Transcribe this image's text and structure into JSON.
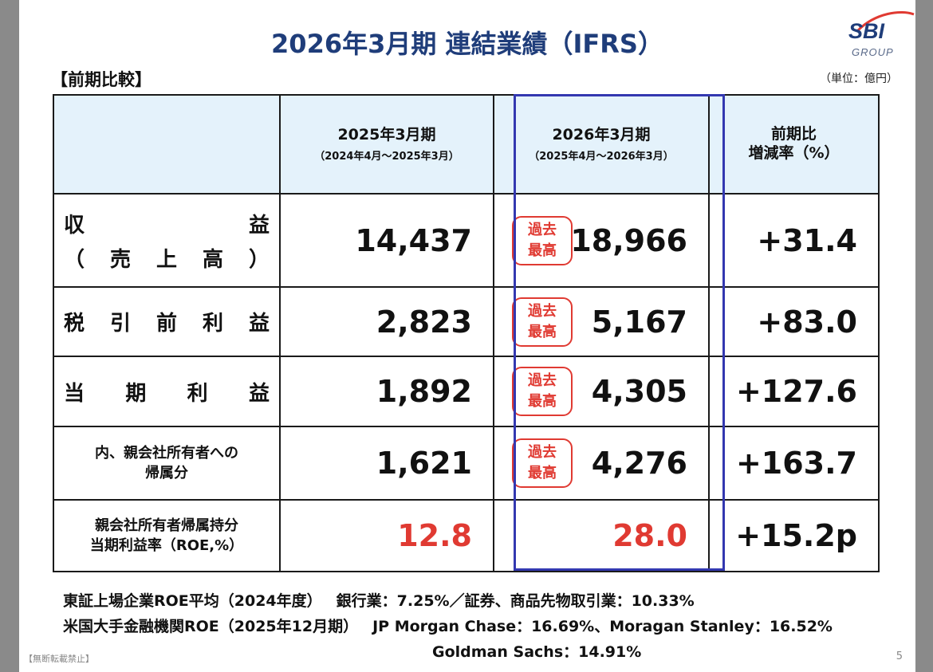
{
  "slide": {
    "title": "2026年3月期 連結業績（IFRS）",
    "logo_text": "SBI",
    "logo_subtext": "GROUP",
    "section_label": "【前期比較】",
    "unit": "（単位：億円）",
    "footer": "【無断転載禁止】",
    "page_number": "5"
  },
  "table": {
    "headers": [
      {
        "title": "2025年3月期",
        "sub": "（2024年4月～2025年3月）"
      },
      {
        "title": "2026年3月期",
        "sub": "（2025年4月～2026年3月）"
      },
      {
        "title_line1": "前期比",
        "title_line2": "増減率（%）"
      }
    ],
    "badge_line1": "過去",
    "badge_line2": "最高",
    "rows": [
      {
        "label_line1": [
          "収",
          "益"
        ],
        "label_line2": [
          "（",
          "売",
          "上",
          "高",
          "）"
        ],
        "prev": "14,437",
        "curr": "18,966",
        "change": "+31.4"
      },
      {
        "label_chars": [
          "税",
          "引",
          "前",
          "利",
          "益"
        ],
        "prev": "2,823",
        "curr": "5,167",
        "change": "+83.0"
      },
      {
        "label_chars": [
          "当",
          "期",
          "利",
          "益"
        ],
        "prev": "1,892",
        "curr": "4,305",
        "change": "+127.6"
      },
      {
        "label_line1": "内、親会社所有者への",
        "label_line2": "帰属分",
        "prev": "1,621",
        "curr": "4,276",
        "change": "+163.7"
      },
      {
        "label_line1": "親会社所有者帰属持分",
        "label_line2": "当期利益率（ROE,%）",
        "prev": "12.8",
        "curr": "28.0",
        "change": "+15.2p"
      }
    ]
  },
  "notes": {
    "line1_label": "東証上場企業ROE平均（2024年度）",
    "line1_value": "銀行業：7.25%／証券、商品先物取引業：10.33%",
    "line2_label": "米国大手金融機関ROE（2025年12月期）",
    "line2_value": "JP Morgan Chase：16.69%、Moragan Stanley：16.52%",
    "line3_value": "Goldman Sachs：14.91%"
  },
  "colors": {
    "title": "#1f3d7a",
    "header_bg": "#e4f2fb",
    "accent_red": "#e03a32",
    "highlight_border": "#3338b0"
  }
}
